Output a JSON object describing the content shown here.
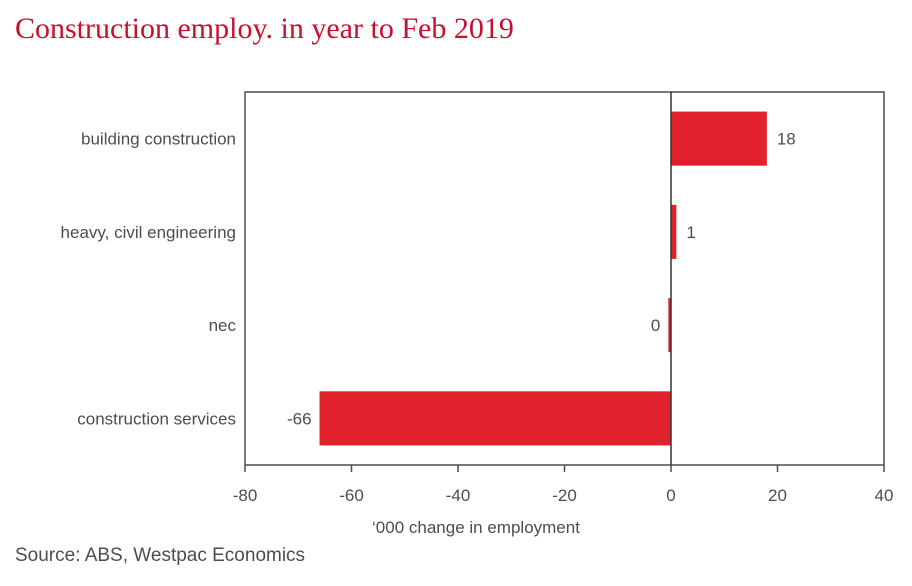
{
  "chart_data": {
    "type": "bar",
    "orientation": "horizontal",
    "title": "Construction employ. in year to Feb 2019",
    "xlabel": "‘000 change in employment",
    "ylabel": "",
    "categories": [
      "building construction",
      "heavy, civil engineering",
      "nec",
      "construction services"
    ],
    "values": [
      18,
      1,
      -0.5,
      -66
    ],
    "data_labels": [
      "18",
      "1",
      "0",
      "-66"
    ],
    "xlim": [
      -80,
      40
    ],
    "xticks": [
      -80,
      -60,
      -40,
      -20,
      0,
      20,
      40
    ],
    "xtick_labels": [
      "-80",
      "-60",
      "-40",
      "-20",
      "0",
      "20",
      "40"
    ],
    "grid": false,
    "bar_color": "#e0202a"
  },
  "source": "Source: ABS, Westpac Economics"
}
